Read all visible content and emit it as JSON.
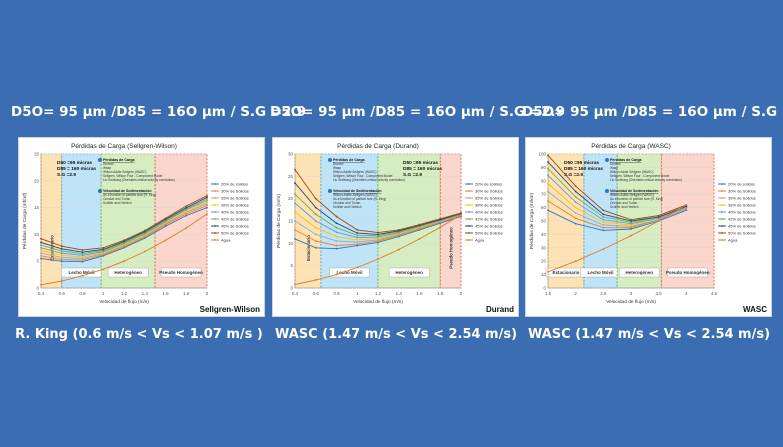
{
  "headings": [
    "D5O= 95 µm /D85 = 16O µm / S.G =2.9",
    "D5O= 95 µm /D85 = 16O µm / S.G =2.9",
    "D5O= 95 µm /D85 = 16O µm / S.G =2.9"
  ],
  "captions": [
    "R. King (0.6 m/s < Vs < 1.07 m/s )",
    "WASC (1.47 m/s < Vs < 2.54 m/s)",
    "WASC (1.47 m/s < Vs < 2.54 m/s)"
  ],
  "colors": {
    "background": "#3b6db3",
    "zone_orange": "#fde3b4",
    "zone_blue": "#bfe3f7",
    "zone_green": "#d6edc2",
    "zone_red": "#fbd6cc",
    "water": "#e07a2a"
  },
  "chart_data": [
    {
      "type": "line",
      "title": "Pérdidas de Carga (Sellgren-Wilson)",
      "badge": "Sellgren-Wilson",
      "xlabel": "Velocidad de flujo (m/s)",
      "ylabel": "Pérdidas de Carga (mf/mf)",
      "xlim": [
        0.4,
        2.0
      ],
      "ylim": [
        0,
        25
      ],
      "xticks": [
        "0.4",
        "0.6",
        "0.8",
        "1",
        "1.2",
        "1.4",
        "1.6",
        "1.8",
        "2"
      ],
      "yticks": [
        "0",
        "5",
        "10",
        "15",
        "20",
        "25"
      ],
      "zones": [
        {
          "label": "Estacionario",
          "from": 0.4,
          "to": 0.6,
          "fill": "#fde3b4"
        },
        {
          "label": "Lecho Móvil",
          "from": 0.6,
          "to": 0.98,
          "fill": "#bfe3f7"
        },
        {
          "label": "Heterogéneo",
          "from": 0.98,
          "to": 1.5,
          "fill": "#d6edc2"
        },
        {
          "label": "Pseudo Homogéneo",
          "from": 1.5,
          "to": 2.0,
          "fill": "#fbd6cc"
        }
      ],
      "info": [
        "D50 =95 micras",
        "D85 = 160 micras",
        "S.G =2.9"
      ],
      "notes": [
        {
          "title": "Pérdidas de Carga",
          "lines": [
            "Durand",
            "Wasp",
            "Wilson Addie Sellgren (WASC)",
            "Sellgren, Wilson Four - Component Model",
            "Liu Sedbung (Overrides critical velocity correlation)"
          ]
        },
        {
          "title": "Velocidad de Sedimentación",
          "lines": [
            "As a function of particle size (R. King)",
            "Oroskar and Turian",
            "Schiller and Herbich"
          ]
        }
      ],
      "legend_position": "right",
      "x": [
        0.4,
        0.6,
        0.8,
        1.0,
        1.2,
        1.4,
        1.6,
        1.8,
        2.0
      ],
      "series": [
        {
          "name": "20% de sólidos",
          "color": "#2f75b6",
          "values": [
            5.5,
            5.0,
            4.9,
            6.0,
            7.5,
            9.3,
            11.5,
            13.5,
            15.0
          ]
        },
        {
          "name": "30% de Sólidos",
          "color": "#ed7d31",
          "values": [
            6.0,
            5.3,
            5.2,
            6.2,
            7.7,
            9.5,
            11.8,
            13.8,
            15.4
          ]
        },
        {
          "name": "35% de Sólidos",
          "color": "#a5a5a5",
          "values": [
            6.5,
            5.7,
            5.5,
            6.4,
            7.9,
            9.7,
            12.0,
            14.1,
            15.7
          ]
        },
        {
          "name": "38% de Sólidos",
          "color": "#ffc000",
          "values": [
            7.0,
            6.1,
            5.8,
            6.6,
            8.1,
            9.9,
            12.2,
            14.3,
            16.0
          ]
        },
        {
          "name": "40% de Sólidos",
          "color": "#5b9bd5",
          "values": [
            7.5,
            6.5,
            6.1,
            6.8,
            8.3,
            10.1,
            12.4,
            14.6,
            16.3
          ]
        },
        {
          "name": "42% de Sólidos",
          "color": "#70ad47",
          "values": [
            8.0,
            6.9,
            6.4,
            7.0,
            8.5,
            10.3,
            12.6,
            14.8,
            16.6
          ]
        },
        {
          "name": "45% de Sólidos",
          "color": "#264478",
          "values": [
            8.5,
            7.3,
            6.7,
            7.2,
            8.7,
            10.5,
            12.8,
            15.0,
            16.9
          ]
        },
        {
          "name": "50% de Sólidos",
          "color": "#9e480e",
          "values": [
            9.2,
            7.8,
            7.1,
            7.5,
            8.9,
            10.7,
            13.0,
            15.3,
            17.2
          ]
        },
        {
          "name": "Agua",
          "color": "#e07a2a",
          "values": [
            0.6,
            1.3,
            2.3,
            3.5,
            5.0,
            6.8,
            8.9,
            11.2,
            13.8
          ]
        }
      ]
    },
    {
      "type": "line",
      "title": "Pérdidas de Carga (Durand)",
      "badge": "Durand",
      "xlabel": "Velocidad de flujo (m/s)",
      "ylabel": "Pérdidas de Carga (m/m)",
      "xlim": [
        0.4,
        2.0
      ],
      "ylim": [
        0,
        30
      ],
      "xticks": [
        "0.4",
        "0.6",
        "0.8",
        "1",
        "1.2",
        "1.4",
        "1.6",
        "1.8",
        "2"
      ],
      "yticks": [
        "0",
        "5",
        "10",
        "15",
        "20",
        "25",
        "30"
      ],
      "zones": [
        {
          "label": "Estacionario",
          "from": 0.4,
          "to": 0.65,
          "fill": "#fde3b4"
        },
        {
          "label": "Lecho Móvil",
          "from": 0.65,
          "to": 1.2,
          "fill": "#bfe3f7"
        },
        {
          "label": "Heterogéneo",
          "from": 1.2,
          "to": 1.8,
          "fill": "#d6edc2"
        },
        {
          "label": "Pseudo Homogéneo",
          "from": 1.8,
          "to": 2.0,
          "fill": "#fbd6cc"
        }
      ],
      "info": [
        "D50 =95 micras",
        "D85 = 160 micras",
        "S.G =2.9"
      ],
      "notes": [
        {
          "title": "Pérdidas de Carga",
          "lines": [
            "Durand",
            "Wasp",
            "Wilson Addie Sellgren (WASC)",
            "Sellgren, Wilson Four - Component Model",
            "Liu Sedbung (Overrides critical velocity correlation)"
          ]
        },
        {
          "title": "Velocidad de Sedimentación",
          "lines": [
            "Wilson-Addie-Sellgren (WASC)",
            "As a function of particle size (R. King)",
            "Oroskar and Turian",
            "Schiller and Herbich"
          ]
        }
      ],
      "legend_position": "right",
      "x": [
        0.4,
        0.6,
        0.8,
        1.0,
        1.2,
        1.4,
        1.6,
        1.8,
        2.0
      ],
      "series": [
        {
          "name": "20% de sólidos",
          "color": "#2f75b6",
          "values": [
            11.0,
            9.0,
            8.8,
            9.5,
            10.2,
            11.5,
            13.0,
            14.5,
            16.0
          ]
        },
        {
          "name": "30% de Sólidos",
          "color": "#ed7d31",
          "values": [
            13.0,
            10.5,
            9.5,
            9.8,
            10.5,
            11.8,
            13.2,
            14.7,
            16.2
          ]
        },
        {
          "name": "35% de Sólidos",
          "color": "#a5a5a5",
          "values": [
            15.0,
            12.0,
            10.5,
            10.3,
            10.8,
            12.0,
            13.4,
            14.8,
            16.3
          ]
        },
        {
          "name": "38% de Sólidos",
          "color": "#ffc000",
          "values": [
            17.0,
            13.5,
            11.5,
            10.8,
            11.1,
            12.2,
            13.6,
            15.0,
            16.4
          ]
        },
        {
          "name": "40% de Sólidos",
          "color": "#5b9bd5",
          "values": [
            19.0,
            15.0,
            12.5,
            11.3,
            11.4,
            12.4,
            13.8,
            15.1,
            16.5
          ]
        },
        {
          "name": "42% de Sólidos",
          "color": "#70ad47",
          "values": [
            21.0,
            16.5,
            13.5,
            11.8,
            11.7,
            12.6,
            13.9,
            15.2,
            16.6
          ]
        },
        {
          "name": "45% de Sólidos",
          "color": "#264478",
          "values": [
            23.5,
            18.0,
            14.5,
            12.3,
            12.0,
            12.8,
            14.0,
            15.3,
            16.7
          ]
        },
        {
          "name": "50% de Sólidos",
          "color": "#9e480e",
          "values": [
            26.5,
            20.0,
            16.0,
            13.0,
            12.4,
            13.0,
            14.2,
            15.5,
            16.8
          ]
        },
        {
          "name": "Agua",
          "color": "#e07a2a",
          "values": [
            0.8,
            1.8,
            3.0,
            4.6,
            6.5,
            8.6,
            11.0,
            13.6,
            16.4
          ]
        }
      ]
    },
    {
      "type": "line",
      "title": "Pérdidas de Carga (WASC)",
      "badge": "WASC",
      "xlabel": "Velocidad de flujo (m/s)",
      "ylabel": "Pérdidas de Carga (m/km)",
      "xlim": [
        1.5,
        4.5
      ],
      "ylim": [
        0,
        100
      ],
      "xticks": [
        "1.5",
        "2",
        "2.5",
        "3",
        "3.5",
        "4",
        "4.5"
      ],
      "yticks": [
        "0",
        "10",
        "20",
        "30",
        "40",
        "50",
        "60",
        "70",
        "80",
        "90",
        "100"
      ],
      "zones": [
        {
          "label": "Estacionario",
          "from": 1.5,
          "to": 2.15,
          "fill": "#fde3b4"
        },
        {
          "label": "Lecho Móvil",
          "from": 2.15,
          "to": 2.75,
          "fill": "#bfe3f7"
        },
        {
          "label": "Heterogéneo",
          "from": 2.75,
          "to": 3.55,
          "fill": "#d6edc2"
        },
        {
          "label": "Pseudo Homogéneo",
          "from": 3.55,
          "to": 4.5,
          "fill": "#fbd6cc"
        }
      ],
      "info": [
        "D50 =95 micras",
        "D85 = 160 micras",
        "S.G =2.9"
      ],
      "notes": [
        {
          "title": "Pérdidas de Carga",
          "lines": [
            "Durand",
            "Wasp",
            "Wilson Addie Sellgren (WASC)",
            "Sellgren, Wilson Four - Component Model",
            "Liu Sedbung (Overrides critical velocity correlation)"
          ]
        },
        {
          "title": "Velocidad de Sedimentación",
          "lines": [
            "Wilson-Addie-Sellgren (WASC)",
            "As a function of particle size (R. King)",
            "Oroskar and Turian",
            "Schiller and Herbich"
          ]
        }
      ],
      "legend_position": "right",
      "x": [
        1.5,
        2.0,
        2.5,
        3.0,
        3.5,
        4.0
      ],
      "series": [
        {
          "name": "20% de sólidos",
          "color": "#2f75b6",
          "values": [
            58,
            48,
            43,
            44,
            50,
            58
          ]
        },
        {
          "name": "30% de Sólidos",
          "color": "#ed7d31",
          "values": [
            65,
            52,
            45,
            45,
            51,
            59
          ]
        },
        {
          "name": "35% de Sólidos",
          "color": "#a5a5a5",
          "values": [
            72,
            56,
            47,
            46,
            51,
            59
          ]
        },
        {
          "name": "38% de Sólidos",
          "color": "#ffc000",
          "values": [
            78,
            60,
            49,
            47,
            52,
            60
          ]
        },
        {
          "name": "40% de Sólidos",
          "color": "#5b9bd5",
          "values": [
            84,
            64,
            51,
            48,
            52,
            60
          ]
        },
        {
          "name": "42% de Sólidos",
          "color": "#70ad47",
          "values": [
            89,
            68,
            53,
            49,
            53,
            61
          ]
        },
        {
          "name": "45% de Sólidos",
          "color": "#264478",
          "values": [
            94,
            72,
            55,
            50,
            53,
            61
          ]
        },
        {
          "name": "50% de Sólidos",
          "color": "#9e480e",
          "values": [
            99,
            76,
            58,
            51,
            54,
            62
          ]
        },
        {
          "name": "Agua",
          "color": "#e07a2a",
          "values": [
            12,
            20,
            29,
            39,
            50,
            62
          ]
        }
      ]
    }
  ]
}
